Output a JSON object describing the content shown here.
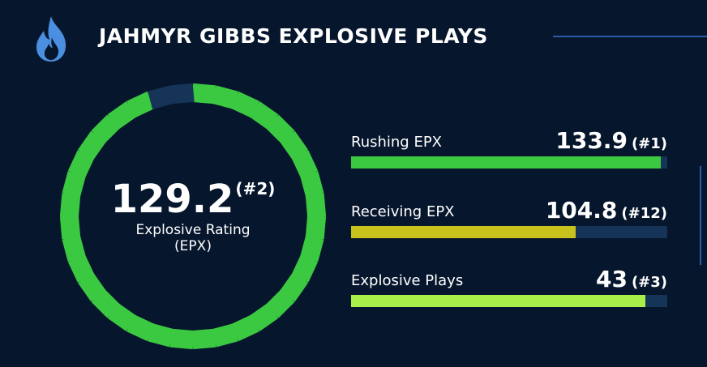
{
  "header": {
    "title": "JAHMYR GIBBS EXPLOSIVE PLAYS",
    "icon": "flame-icon"
  },
  "rating": {
    "value": "129.2",
    "rank": "(#2)",
    "label_line1": "Explosive Rating",
    "label_line2": "(EPX)",
    "segments_total": 36,
    "segments_filled": 34,
    "filled_color": "#3cc942",
    "empty_color": "#163358"
  },
  "stats": [
    {
      "label": "Rushing EPX",
      "value": "133.9",
      "rank": "(#1)",
      "fill": 0.98,
      "color": "#3cc942"
    },
    {
      "label": "Receiving EPX",
      "value": "104.8",
      "rank": "(#12)",
      "fill": 0.71,
      "color": "#c7c21c"
    },
    {
      "label": "Explosive Plays",
      "value": "43",
      "rank": "(#3)",
      "fill": 0.93,
      "color": "#a9ef4a"
    }
  ],
  "colors": {
    "background": "#06162d",
    "track": "#163358",
    "accent_line": "#2c5da8",
    "flame": "#4a8fe0"
  }
}
